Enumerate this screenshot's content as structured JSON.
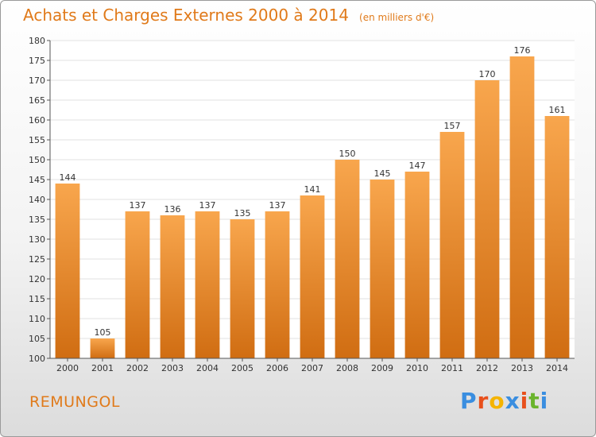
{
  "chart_data": {
    "type": "bar",
    "title": "Achats et Charges Externes 2000 à 2014",
    "subtitle": "(en milliers d'€)",
    "categories": [
      "2000",
      "2001",
      "2002",
      "2003",
      "2004",
      "2005",
      "2006",
      "2007",
      "2008",
      "2009",
      "2010",
      "2011",
      "2012",
      "2013",
      "2014"
    ],
    "values": [
      144,
      105,
      137,
      136,
      137,
      135,
      137,
      141,
      150,
      145,
      147,
      157,
      170,
      176,
      161
    ],
    "ylim": [
      100,
      180
    ],
    "yticks": [
      100,
      105,
      110,
      115,
      120,
      125,
      130,
      135,
      140,
      145,
      150,
      155,
      160,
      165,
      170,
      175,
      180
    ],
    "grid": true,
    "legend": "none"
  },
  "commune": "REMUNGOL",
  "brand": {
    "letters": [
      "P",
      "r",
      "o",
      "x",
      "i",
      "t",
      "i"
    ],
    "colors": [
      "#3a8ee0",
      "#e8501c",
      "#f5b400",
      "#3a8ee0",
      "#e8501c",
      "#6ab42d",
      "#3a8ee0"
    ]
  },
  "colors": {
    "accent": "#e07a1a",
    "bar_light": "#f8a64d",
    "bar_dark": "#d06d12"
  }
}
